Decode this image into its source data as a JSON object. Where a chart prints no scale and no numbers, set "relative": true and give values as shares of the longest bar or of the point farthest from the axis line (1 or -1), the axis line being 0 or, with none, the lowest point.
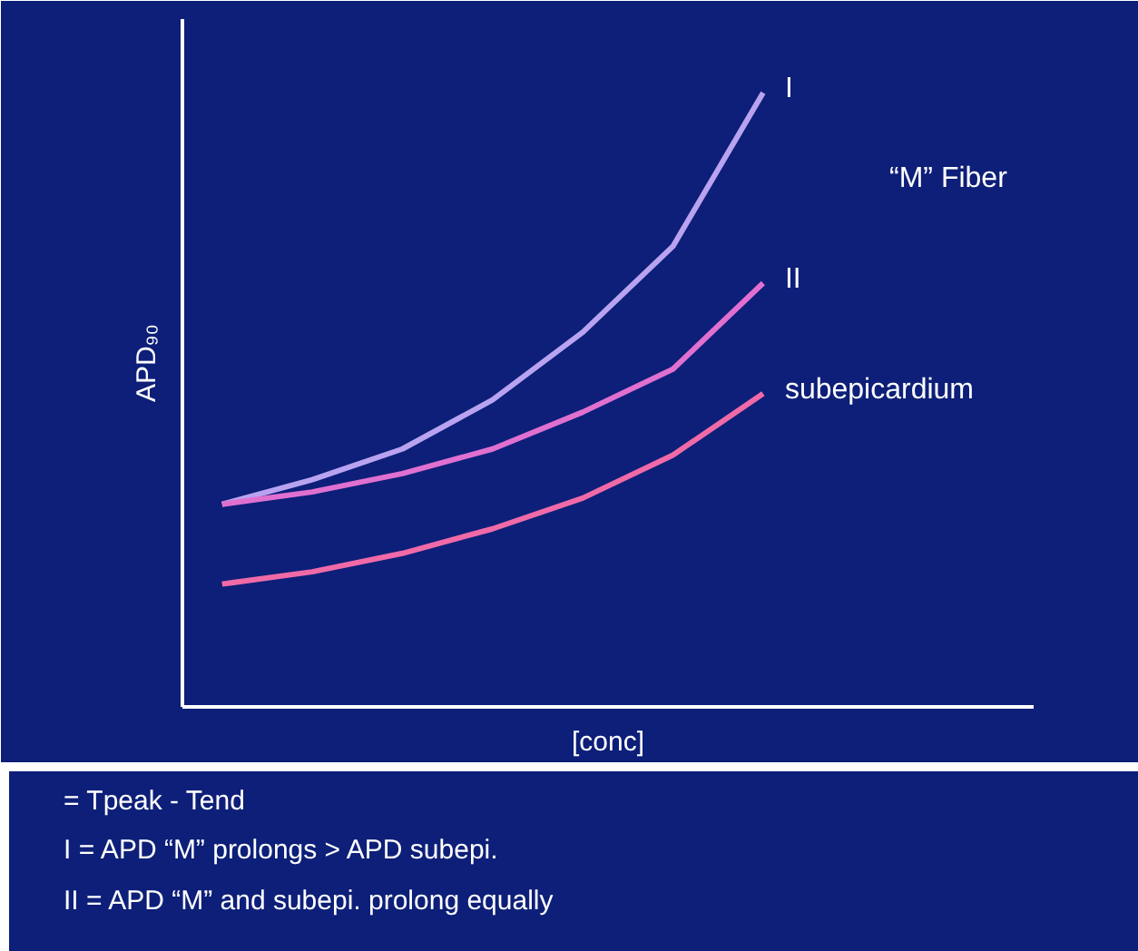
{
  "chart_data": {
    "type": "line",
    "relative": true,
    "xlabel": "[conc]",
    "ylabel": "APD₉₀",
    "categories": [
      null,
      null,
      null,
      null,
      null,
      null,
      null
    ],
    "series": [
      {
        "name": "I",
        "color": "#b9a3f0",
        "values": [
          0.33,
          0.37,
          0.42,
          0.5,
          0.61,
          0.75,
          1
        ]
      },
      {
        "name": "II",
        "color": "#e070d0",
        "values": [
          0.33,
          0.35,
          0.38,
          0.42,
          0.48,
          0.55,
          0.69
        ]
      },
      {
        "name": "subepicardium",
        "color": "#f06aa8",
        "values": [
          0.2,
          0.22,
          0.25,
          0.29,
          0.34,
          0.41,
          0.51
        ]
      }
    ],
    "annotations": [
      "“M” Fiber",
      "= Tpeak - Tend",
      "I = APD “M” prolongs > APD subepi.",
      "II = APD “M” and  subepi. prolong equally"
    ]
  }
}
